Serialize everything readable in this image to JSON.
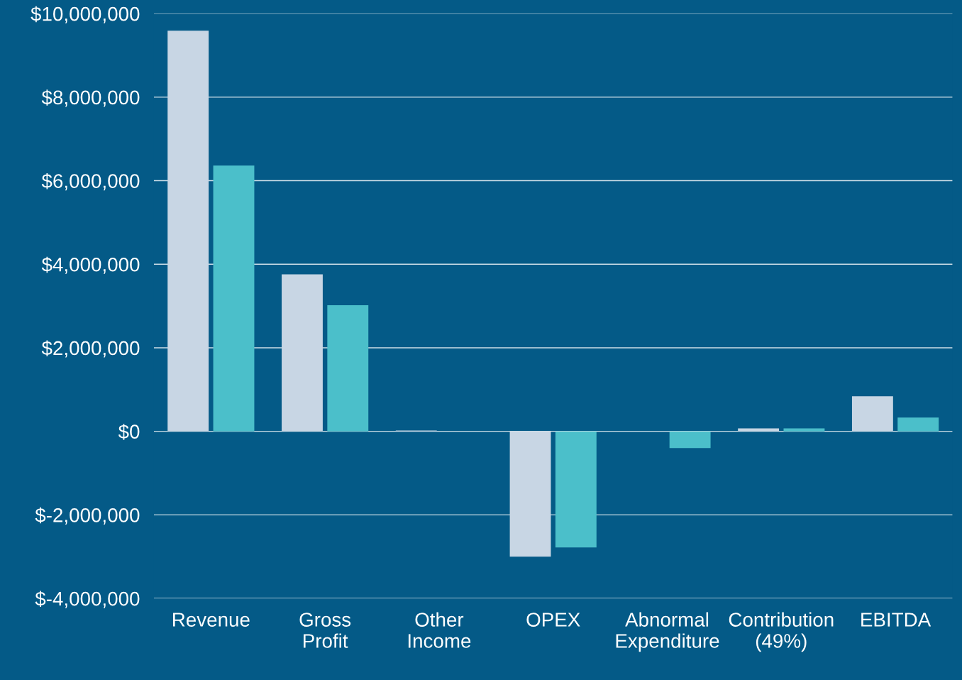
{
  "chart_data": {
    "type": "bar",
    "categories": [
      "Revenue",
      "Gross\nProfit",
      "Other\nIncome",
      "OPEX",
      "Abnormal\nExpenditure",
      "Contribution\n(49%)",
      "EBITDA"
    ],
    "series": [
      {
        "color": "#c8d6e4",
        "values": [
          9590000,
          3760000,
          20000,
          -3000000,
          0,
          70000,
          840000
        ]
      },
      {
        "color": "#4bbfca",
        "values": [
          6360000,
          3020000,
          0,
          -2780000,
          -400000,
          70000,
          330000
        ]
      }
    ],
    "ylim": [
      -4000000,
      10000000
    ],
    "yticks": [
      {
        "value": -4000000,
        "label": "$-4,000,000"
      },
      {
        "value": -2000000,
        "label": "$-2,000,000"
      },
      {
        "value": 0,
        "label": "$0"
      },
      {
        "value": 2000000,
        "label": "$2,000,000"
      },
      {
        "value": 4000000,
        "label": "$4,000,000"
      },
      {
        "value": 6000000,
        "label": "$6,000,000"
      },
      {
        "value": 8000000,
        "label": "$8,000,000"
      },
      {
        "value": 10000000,
        "label": "$10,000,000"
      }
    ],
    "grid": "y"
  }
}
